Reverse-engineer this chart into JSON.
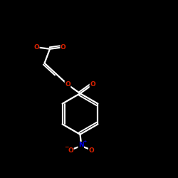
{
  "background_color": "#000000",
  "bond_color": "#ffffff",
  "oxygen_color": "#dd2200",
  "nitrogen_color": "#0000ee",
  "line_width": 1.6,
  "figsize": [
    2.5,
    2.5
  ],
  "dpi": 100,
  "xlim": [
    0,
    10
  ],
  "ylim": [
    0,
    10
  ]
}
